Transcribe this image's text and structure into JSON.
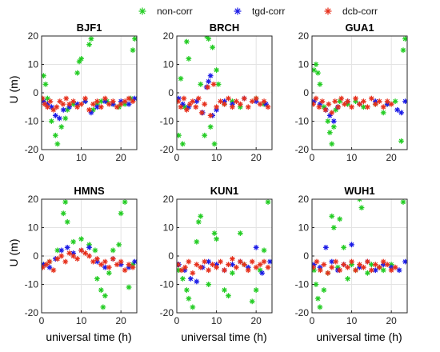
{
  "chart_data": {
    "type": "scatter",
    "marker": "asterisk",
    "grid": true,
    "legend": {
      "placement": "top-right",
      "entries": [
        {
          "name": "non-corr",
          "color": "#22cc22"
        },
        {
          "name": "tgd-corr",
          "color": "#1a1ae6"
        },
        {
          "name": "dcb-corr",
          "color": "#e62e1a"
        }
      ]
    },
    "shared": {
      "ylabel": "U (m)",
      "xlabel": "universal time (h)",
      "xlim": [
        0,
        24
      ],
      "ylim": [
        -20,
        20
      ],
      "xticks": [
        "0",
        "10",
        "20"
      ],
      "yticks": [
        "20",
        "10",
        "0",
        "-10",
        "-20"
      ]
    },
    "panels": [
      {
        "title": "BJF1",
        "series": [
          {
            "name": "non-corr",
            "x": [
              0.5,
              1.0,
              1.5,
              2.5,
              3.5,
              4.0,
              5.0,
              6.0,
              6.5,
              8.0,
              9.0,
              9.5,
              10.0,
              11.0,
              12.0,
              12.5,
              13.0,
              14.0,
              15.0,
              16.5,
              18.0,
              19.5,
              21.0,
              22.5,
              23.0,
              23.5
            ],
            "y": [
              6,
              3,
              -2,
              -10,
              -15,
              -18,
              -12,
              -9,
              -6,
              -4,
              7,
              11,
              12,
              -3,
              17,
              19,
              -6,
              -4,
              -3,
              -3,
              -4,
              -5,
              -4,
              -2,
              15,
              19
            ]
          },
          {
            "name": "tgd-corr",
            "x": [
              0.5,
              1.5,
              2.5,
              3.5,
              4.5,
              5.5,
              7.0,
              9.0,
              11.0,
              12.5,
              14.0,
              16.0,
              18.0,
              20.0,
              22.0,
              23.5
            ],
            "y": [
              -3,
              -4,
              -5,
              -8,
              -9,
              -6,
              -5,
              -4,
              -3,
              -7,
              -5,
              -3,
              -4,
              -3,
              -4,
              -2
            ]
          },
          {
            "name": "dcb-corr",
            "x": [
              0.2,
              0.8,
              1.5,
              2.2,
              3.0,
              3.8,
              4.6,
              5.4,
              6.2,
              7.0,
              8.0,
              9.0,
              10.0,
              11.0,
              12.0,
              13.0,
              14.0,
              15.0,
              16.0,
              17.0,
              18.0,
              19.0,
              20.0,
              21.0,
              22.0,
              23.0
            ],
            "y": [
              -2,
              -4,
              -5,
              -3,
              -6,
              -5,
              -3,
              -4,
              -2,
              -4,
              -3,
              -5,
              -4,
              -2,
              -6,
              -4,
              -3,
              -5,
              -2,
              -4,
              -3,
              -5,
              -4,
              -3,
              -2,
              -3
            ]
          }
        ]
      },
      {
        "title": "BRCH",
        "series": [
          {
            "name": "non-corr",
            "x": [
              0.5,
              1.0,
              1.5,
              2.0,
              2.5,
              3.0,
              6.0,
              7.0,
              7.5,
              8.0,
              8.5,
              9.0,
              9.5,
              10.0,
              10.5,
              12.0,
              14.0,
              16.0,
              20.0,
              22.0
            ],
            "y": [
              -15,
              5,
              -18,
              -5,
              18,
              12,
              3,
              -15,
              20,
              19,
              -12,
              16,
              -18,
              8,
              3,
              -4,
              -3,
              -5,
              -2,
              -4
            ]
          },
          {
            "name": "tgd-corr",
            "x": [
              0.5,
              1.5,
              3.0,
              5.0,
              6.5,
              7.5,
              8.0,
              8.5,
              9.0,
              10.0,
              12.0,
              14.0,
              17.0,
              20.0,
              22.5
            ],
            "y": [
              -2,
              -4,
              -5,
              -3,
              -7,
              2,
              4,
              6,
              -8,
              -6,
              -3,
              -4,
              -2,
              -3,
              -4
            ]
          },
          {
            "name": "dcb-corr",
            "x": [
              0.3,
              1.0,
              1.8,
              2.5,
              3.3,
              4.0,
              4.8,
              5.5,
              6.3,
              7.0,
              7.8,
              8.5,
              9.3,
              10.0,
              11.0,
              12.0,
              13.0,
              14.0,
              15.0,
              16.0,
              17.0,
              18.0,
              19.0,
              20.0,
              21.0,
              22.0,
              23.0
            ],
            "y": [
              -3,
              -5,
              -2,
              -6,
              -4,
              -3,
              -5,
              -2,
              -7,
              -4,
              2,
              -8,
              3,
              -5,
              -3,
              -4,
              -2,
              -5,
              -3,
              -4,
              -2,
              -5,
              -3,
              -2,
              -4,
              -3,
              -5
            ]
          }
        ]
      },
      {
        "title": "GUA1",
        "series": [
          {
            "name": "non-corr",
            "x": [
              0.5,
              1.0,
              1.5,
              2.0,
              3.0,
              4.0,
              4.5,
              5.0,
              5.5,
              6.0,
              7.0,
              9.0,
              11.0,
              13.0,
              16.0,
              18.0,
              19.0,
              21.0,
              22.5,
              23.0,
              23.5
            ],
            "y": [
              8,
              10,
              7,
              3,
              -5,
              -10,
              -14,
              -18,
              -12,
              -6,
              -3,
              -4,
              -3,
              -5,
              -4,
              -7,
              -4,
              -3,
              -17,
              15,
              19
            ]
          },
          {
            "name": "tgd-corr",
            "x": [
              0.5,
              2.0,
              3.5,
              4.5,
              5.5,
              6.5,
              9.0,
              12.0,
              16.0,
              19.0,
              21.5,
              22.5,
              23.5
            ],
            "y": [
              -3,
              -4,
              -6,
              -8,
              -10,
              -5,
              -3,
              -4,
              -3,
              -4,
              -6,
              -7,
              -3
            ]
          },
          {
            "name": "dcb-corr",
            "x": [
              0.3,
              1.0,
              1.8,
              2.6,
              3.4,
              4.2,
              5.0,
              5.8,
              6.6,
              7.4,
              8.2,
              9.0,
              10.0,
              11.0,
              12.0,
              13.0,
              14.0,
              15.0,
              16.0,
              17.0,
              18.0,
              19.0,
              20.0
            ],
            "y": [
              -4,
              -2,
              -5,
              -3,
              -6,
              -4,
              -7,
              -3,
              -5,
              -2,
              -4,
              -3,
              -5,
              -2,
              -4,
              -3,
              -5,
              -2,
              -4,
              -3,
              -5,
              -3,
              -4
            ]
          }
        ]
      },
      {
        "title": "HMNS",
        "series": [
          {
            "name": "non-corr",
            "x": [
              0.5,
              2.0,
              4.0,
              5.5,
              6.0,
              6.5,
              8.0,
              10.0,
              12.0,
              13.5,
              14.0,
              15.0,
              15.5,
              16.0,
              17.0,
              18.0,
              19.5,
              20.0,
              21.0,
              22.0,
              23.0
            ],
            "y": [
              -3,
              -2,
              2,
              15,
              19,
              12,
              5,
              6,
              4,
              2,
              -8,
              -12,
              -18,
              -14,
              -6,
              2,
              4,
              15,
              19,
              -11,
              -3
            ]
          },
          {
            "name": "tgd-corr",
            "x": [
              0.5,
              2.0,
              3.5,
              5.0,
              6.5,
              8.0,
              10.0,
              12.0,
              14.0,
              16.0,
              18.0,
              20.0,
              22.0,
              23.5
            ],
            "y": [
              -3,
              -4,
              -1,
              2,
              3,
              1,
              2,
              3,
              -2,
              -4,
              -1,
              -3,
              -4,
              -2
            ]
          },
          {
            "name": "dcb-corr",
            "x": [
              0.3,
              1.2,
              2.0,
              3.0,
              4.0,
              5.0,
              6.0,
              7.0,
              8.0,
              9.0,
              10.0,
              11.0,
              12.0,
              13.0,
              14.0,
              15.0,
              16.0,
              17.0,
              18.0,
              19.0,
              20.0,
              21.0,
              22.0,
              23.0
            ],
            "y": [
              -4,
              -3,
              -2,
              -5,
              -1,
              0,
              -2,
              1,
              0,
              -1,
              2,
              1,
              0,
              -2,
              -1,
              -3,
              -2,
              -4,
              -1,
              -3,
              -2,
              -5,
              -3,
              -4
            ]
          }
        ]
      },
      {
        "title": "KUN1",
        "series": [
          {
            "name": "non-corr",
            "x": [
              0.5,
              1.5,
              2.5,
              3.0,
              4.0,
              5.0,
              5.5,
              6.0,
              8.0,
              9.5,
              10.0,
              12.0,
              13.0,
              14.0,
              16.0,
              17.0,
              19.0,
              20.0,
              21.0,
              22.0,
              23.0
            ],
            "y": [
              -5,
              -8,
              -12,
              -15,
              -18,
              5,
              12,
              14,
              -10,
              8,
              6,
              -12,
              -14,
              -6,
              8,
              -3,
              -16,
              -12,
              -5,
              2,
              19
            ]
          },
          {
            "name": "tgd-corr",
            "x": [
              0.5,
              2.0,
              3.5,
              5.0,
              6.5,
              8.0,
              10.0,
              12.0,
              14.0,
              16.0,
              18.0,
              20.0,
              21.5,
              23.5
            ],
            "y": [
              -3,
              -5,
              -8,
              -9,
              -4,
              -2,
              -3,
              -5,
              -3,
              -2,
              -4,
              3,
              -6,
              -2
            ]
          },
          {
            "name": "dcb-corr",
            "x": [
              0.3,
              1.2,
              2.1,
              3.0,
              4.0,
              5.0,
              6.0,
              7.0,
              8.0,
              9.0,
              10.0,
              11.0,
              12.0,
              13.0,
              14.0,
              15.0,
              16.0,
              17.0,
              18.0,
              19.0,
              20.0,
              21.0,
              22.0,
              23.0
            ],
            "y": [
              -3,
              -5,
              -4,
              -2,
              -6,
              -3,
              -4,
              -2,
              -5,
              -3,
              -4,
              -2,
              -5,
              -3,
              -1,
              -4,
              -2,
              -3,
              -5,
              -2,
              -4,
              -3,
              -2,
              -4
            ]
          }
        ]
      },
      {
        "title": "WUH1",
        "series": [
          {
            "name": "non-corr",
            "x": [
              0.5,
              1.0,
              1.5,
              2.0,
              3.0,
              4.0,
              5.0,
              5.5,
              6.5,
              7.0,
              8.0,
              9.0,
              10.0,
              11.0,
              12.0,
              12.5,
              14.0,
              15.0,
              17.0,
              18.0,
              20.0,
              23.0
            ],
            "y": [
              -5,
              -10,
              -15,
              -18,
              -12,
              -6,
              14,
              10,
              -4,
              13,
              3,
              -8,
              -3,
              -5,
              20,
              17,
              -6,
              -3,
              -4,
              -5,
              -3,
              19
            ]
          },
          {
            "name": "tgd-corr",
            "x": [
              0.5,
              2.0,
              3.5,
              5.0,
              6.5,
              8.0,
              10.0,
              12.0,
              14.0,
              16.0,
              18.0,
              20.0,
              22.0,
              23.5
            ],
            "y": [
              -3,
              -4,
              3,
              -2,
              -5,
              -3,
              4,
              -4,
              -2,
              -5,
              -3,
              -4,
              -5,
              -2
            ]
          },
          {
            "name": "dcb-corr",
            "x": [
              0.3,
              1.2,
              2.1,
              3.0,
              4.0,
              5.0,
              6.0,
              7.0,
              8.0,
              9.0,
              10.0,
              11.0,
              12.0,
              13.0,
              14.0,
              15.0,
              16.0,
              17.0,
              18.0,
              19.0,
              20.0,
              21.0
            ],
            "y": [
              -4,
              -2,
              -5,
              -3,
              -6,
              -4,
              -2,
              -5,
              -3,
              -4,
              -2,
              -5,
              -3,
              -4,
              -2,
              -5,
              -3,
              -4,
              -2,
              -3,
              -5,
              -4
            ]
          }
        ]
      }
    ]
  }
}
